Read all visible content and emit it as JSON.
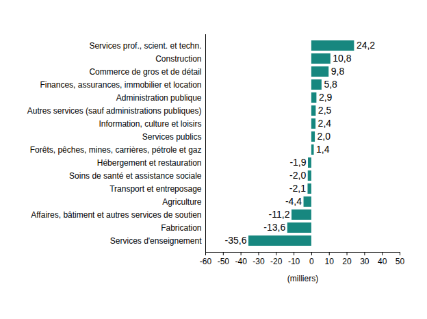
{
  "chart_data": {
    "type": "bar",
    "orientation": "horizontal",
    "x_label": "(milliers)",
    "categories": [
      "Services prof., scient. et techn.",
      "Construction",
      "Commerce de gros et de détail",
      "Finances, assurances, immobilier et location",
      "Administration publique",
      "Autres services (sauf administrations publiques)",
      "Information, culture et loisirs",
      "Services publics",
      "Forêts, pêches, mines, carrières, pétrole et gaz",
      "Hébergement et restauration",
      "Soins de santé et assistance sociale",
      "Transport et entreposage",
      "Agriculture",
      "Affaires, bâtiment et autres services de soutien",
      "Fabrication",
      "Services d'enseignement"
    ],
    "values": [
      24.2,
      10.8,
      9.8,
      5.8,
      2.9,
      2.5,
      2.4,
      2.0,
      1.4,
      -1.9,
      -2.0,
      -2.1,
      -4.4,
      -11.2,
      -13.6,
      -35.6
    ],
    "value_labels": [
      "24,2",
      "10,8",
      "9,8",
      "5,8",
      "2,9",
      "2,5",
      "2,4",
      "2,0",
      "1,4",
      "-1,9",
      "-2,0",
      "-2,1",
      "-4,4",
      "-11,2",
      "-13,6",
      "-35,6"
    ],
    "color": "#17877f",
    "xlim": [
      -60,
      50
    ],
    "xticks": [
      -60,
      -50,
      -40,
      -30,
      -20,
      -10,
      0,
      10,
      20,
      30,
      40,
      50
    ],
    "data_labels": true,
    "grid": false
  }
}
